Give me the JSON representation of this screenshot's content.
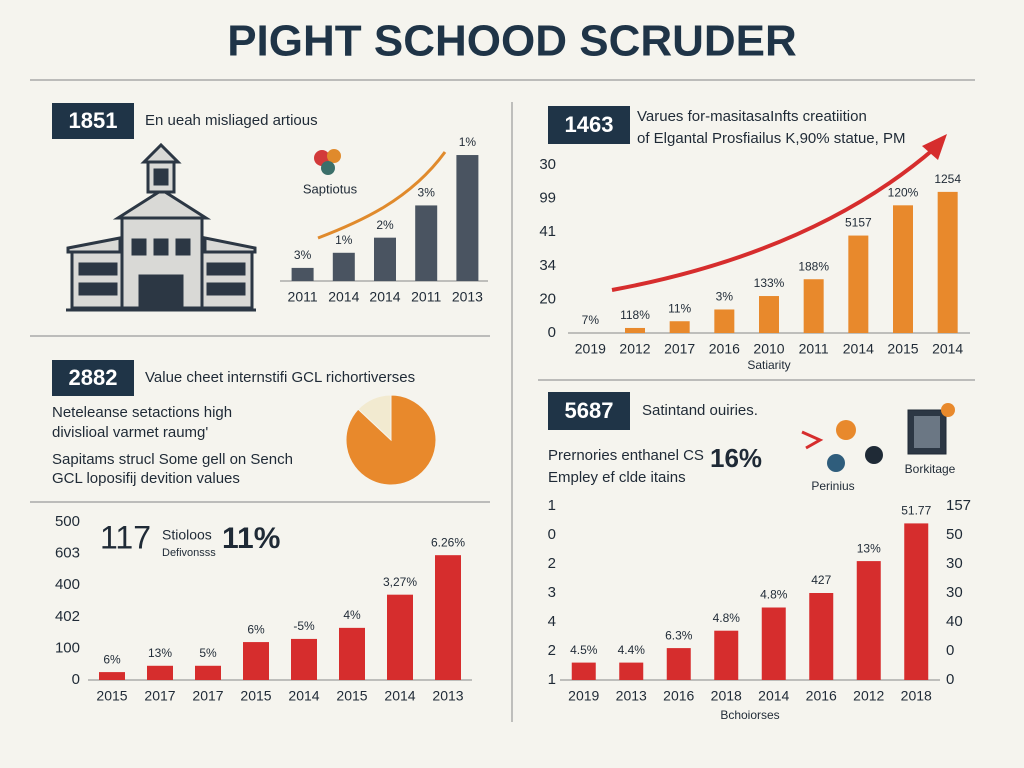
{
  "title": "PIGHT SCHOOD SCRUDER",
  "panels": [
    {
      "badge": "1851",
      "caption": "En ueah misliaged artious"
    },
    {
      "badge": "1463",
      "lines": [
        "Varues for-masitasaInfts creatiition",
        "of Elgantal Prosfiailus K,90% statue, PM"
      ]
    },
    {
      "badge": "2882",
      "heading": "Value cheet internstifi GCL richortiverses",
      "lines": [
        "Neteleanse setactions high",
        "divislioal varmet raumg'",
        "Sapitams strucl Some gell on Sench",
        "GCL loposifij devition values"
      ]
    },
    {
      "big": "117",
      "lines": [
        "Stioloos",
        "Defivonsss"
      ],
      "stat": "11%"
    },
    {
      "badge": "5687",
      "heading": "Satintand ouiries.",
      "lines": [
        "Prernories enthanel CS",
        "Empley ef clde itains"
      ],
      "stat": "16%",
      "icons": [
        "Perinius",
        "Borkitage"
      ]
    }
  ],
  "chart_data": [
    {
      "type": "bar",
      "legend": "Saptiotus",
      "categories": [
        "2011",
        "2014",
        "2014",
        "2011",
        "2013"
      ],
      "values": [
        13,
        28,
        43,
        75,
        125
      ],
      "bar_labels": [
        "3%",
        "1%",
        "2%",
        "3%",
        "1%"
      ],
      "color": "#4a5461",
      "ylim": [
        0,
        130
      ]
    },
    {
      "type": "bar",
      "xlabel": "Satiarity",
      "categories": [
        "2019",
        "2012",
        "2017",
        "2016",
        "2010",
        "2011",
        "2014",
        "2015",
        "2014"
      ],
      "values": [
        0,
        0.15,
        0.35,
        0.7,
        1.1,
        1.6,
        2.9,
        3.8,
        4.2
      ],
      "bar_labels": [
        "7%",
        "118%",
        "11%",
        "3%",
        "133%",
        "188%",
        "5157",
        "120%",
        "1254"
      ],
      "color": "#e8892c",
      "ylim": [
        0,
        5
      ],
      "yticks": [
        {
          "value": 5,
          "label": "30"
        },
        {
          "value": 4,
          "label": "99"
        },
        {
          "value": 3,
          "label": "41"
        },
        {
          "value": 2,
          "label": "34"
        },
        {
          "value": 1,
          "label": "20"
        },
        0
      ]
    },
    {
      "type": "pie",
      "values": [
        87,
        13
      ],
      "colors": [
        "#e8892c",
        "#f2ead0"
      ]
    },
    {
      "type": "bar",
      "categories": [
        "2015",
        "2017",
        "2017",
        "2015",
        "2014",
        "2015",
        "2014",
        "2013"
      ],
      "values": [
        0.25,
        0.45,
        0.45,
        1.2,
        1.3,
        1.65,
        2.7,
        3.95
      ],
      "bar_labels": [
        "6%",
        "13%",
        "5%",
        "6%",
        "-5%",
        "4%",
        "3,27%",
        "6.26%"
      ],
      "color": "#d62d2d",
      "ylim": [
        0,
        5
      ],
      "yticks": [
        {
          "value": 5,
          "label": "500"
        },
        {
          "value": 4,
          "label": "603"
        },
        {
          "value": 3,
          "label": "400"
        },
        {
          "value": 2,
          "label": "402"
        },
        {
          "value": 1,
          "label": "100"
        },
        0
      ]
    },
    {
      "type": "bar",
      "xlabel": "Bchoiorses",
      "categories": [
        "2019",
        "2013",
        "2016",
        "2018",
        "2014",
        "2016",
        "2012",
        "2018"
      ],
      "values": [
        0.6,
        0.6,
        1.1,
        1.7,
        2.5,
        3.0,
        4.1,
        5.4
      ],
      "bar_labels": [
        "4.5%",
        "4.4%",
        "6.3%",
        "4.8%",
        "4.8%",
        "427",
        "13%",
        "51.77"
      ],
      "color": "#d62d2d",
      "ylim": [
        0,
        6
      ],
      "yticks": [
        {
          "value": 6,
          "label": "1"
        },
        {
          "value": 5,
          "label": "0"
        },
        {
          "value": 4,
          "label": "2"
        },
        {
          "value": 3,
          "label": "3"
        },
        {
          "value": 2,
          "label": "4"
        },
        {
          "value": 1,
          "label": "2"
        },
        {
          "value": 0,
          "label": "1"
        }
      ],
      "y2lim": [
        0,
        6
      ],
      "y2ticks": [
        {
          "value": 6,
          "label": "157"
        },
        {
          "value": 5,
          "label": "50"
        },
        {
          "value": 4,
          "label": "30"
        },
        {
          "value": 3,
          "label": "30"
        },
        {
          "value": 2,
          "label": "40"
        },
        {
          "value": 1,
          "label": "0"
        },
        0
      ]
    }
  ]
}
